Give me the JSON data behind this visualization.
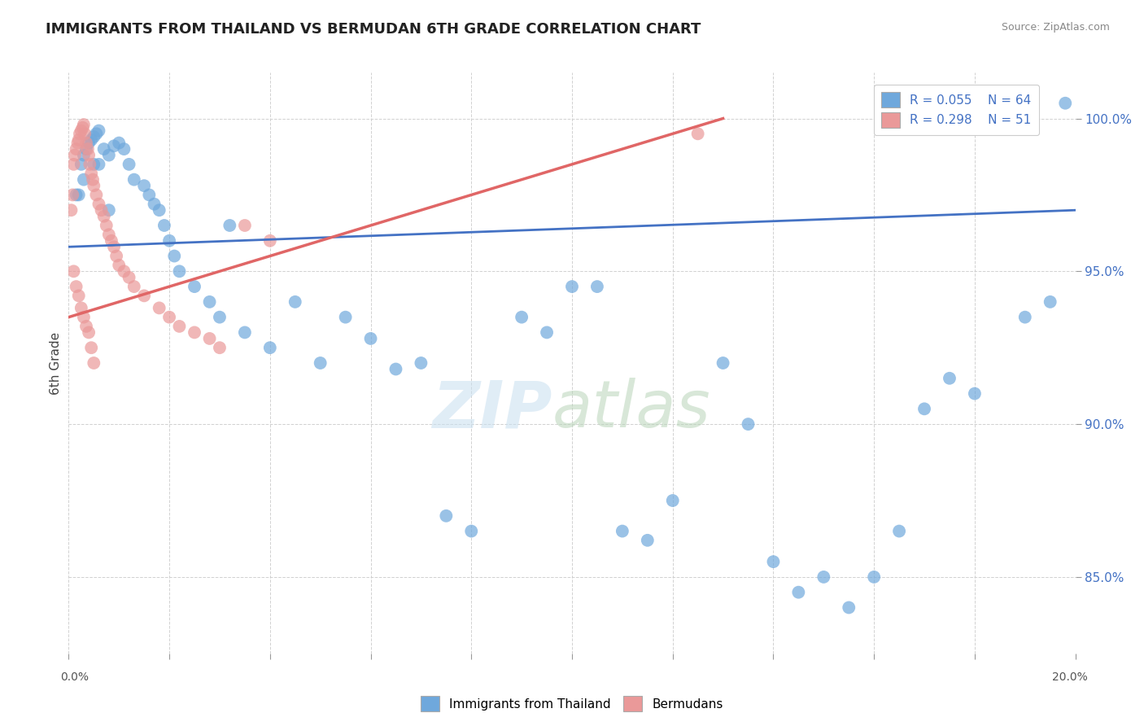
{
  "title": "IMMIGRANTS FROM THAILAND VS BERMUDAN 6TH GRADE CORRELATION CHART",
  "source": "Source: ZipAtlas.com",
  "ylabel": "6th Grade",
  "xlim": [
    0.0,
    20.0
  ],
  "ylim": [
    82.5,
    101.5
  ],
  "yticks": [
    85.0,
    90.0,
    95.0,
    100.0
  ],
  "ytick_labels": [
    "85.0%",
    "90.0%",
    "95.0%",
    "100.0%"
  ],
  "blue_color": "#6fa8dc",
  "pink_color": "#ea9999",
  "blue_line_color": "#4472c4",
  "pink_line_color": "#e06666",
  "blue_scatter_x": [
    0.15,
    0.25,
    0.3,
    0.35,
    0.4,
    0.45,
    0.5,
    0.55,
    0.6,
    0.7,
    0.8,
    0.9,
    1.0,
    1.1,
    1.2,
    1.3,
    1.5,
    1.6,
    1.7,
    1.8,
    1.9,
    2.0,
    2.1,
    2.2,
    2.5,
    2.8,
    3.0,
    3.2,
    3.5,
    4.0,
    4.5,
    5.0,
    5.5,
    6.0,
    6.5,
    7.0,
    7.5,
    8.0,
    9.0,
    9.5,
    10.0,
    10.5,
    11.0,
    11.5,
    12.0,
    13.0,
    13.5,
    14.0,
    14.5,
    15.0,
    15.5,
    16.0,
    16.5,
    17.0,
    17.5,
    18.0,
    19.0,
    19.5,
    19.8,
    0.2,
    0.3,
    0.5,
    0.6,
    0.8
  ],
  "blue_scatter_y": [
    97.5,
    98.5,
    98.8,
    99.0,
    99.2,
    99.3,
    99.4,
    99.5,
    99.6,
    99.0,
    98.8,
    99.1,
    99.2,
    99.0,
    98.5,
    98.0,
    97.8,
    97.5,
    97.2,
    97.0,
    96.5,
    96.0,
    95.5,
    95.0,
    94.5,
    94.0,
    93.5,
    96.5,
    93.0,
    92.5,
    94.0,
    92.0,
    93.5,
    92.8,
    91.8,
    92.0,
    87.0,
    86.5,
    93.5,
    93.0,
    94.5,
    94.5,
    86.5,
    86.2,
    87.5,
    92.0,
    90.0,
    85.5,
    84.5,
    85.0,
    84.0,
    85.0,
    86.5,
    90.5,
    91.5,
    91.0,
    93.5,
    94.0,
    100.5,
    97.5,
    98.0,
    98.5,
    98.5,
    97.0
  ],
  "pink_scatter_x": [
    0.05,
    0.08,
    0.1,
    0.12,
    0.15,
    0.18,
    0.2,
    0.22,
    0.25,
    0.28,
    0.3,
    0.32,
    0.35,
    0.38,
    0.4,
    0.42,
    0.45,
    0.48,
    0.5,
    0.55,
    0.6,
    0.65,
    0.7,
    0.75,
    0.8,
    0.85,
    0.9,
    0.95,
    1.0,
    1.1,
    1.2,
    1.3,
    1.5,
    1.8,
    2.0,
    2.2,
    2.5,
    2.8,
    3.0,
    3.5,
    4.0,
    0.1,
    0.15,
    0.2,
    0.25,
    0.3,
    0.35,
    0.4,
    0.45,
    0.5,
    12.5
  ],
  "pink_scatter_y": [
    97.0,
    97.5,
    98.5,
    98.8,
    99.0,
    99.2,
    99.3,
    99.5,
    99.6,
    99.7,
    99.8,
    99.5,
    99.2,
    99.0,
    98.8,
    98.5,
    98.2,
    98.0,
    97.8,
    97.5,
    97.2,
    97.0,
    96.8,
    96.5,
    96.2,
    96.0,
    95.8,
    95.5,
    95.2,
    95.0,
    94.8,
    94.5,
    94.2,
    93.8,
    93.5,
    93.2,
    93.0,
    92.8,
    92.5,
    96.5,
    96.0,
    95.0,
    94.5,
    94.2,
    93.8,
    93.5,
    93.2,
    93.0,
    92.5,
    92.0,
    99.5
  ],
  "blue_trend_x": [
    0.0,
    20.0
  ],
  "blue_trend_y": [
    95.8,
    97.0
  ],
  "pink_trend_x": [
    0.0,
    13.0
  ],
  "pink_trend_y": [
    93.5,
    100.0
  ]
}
